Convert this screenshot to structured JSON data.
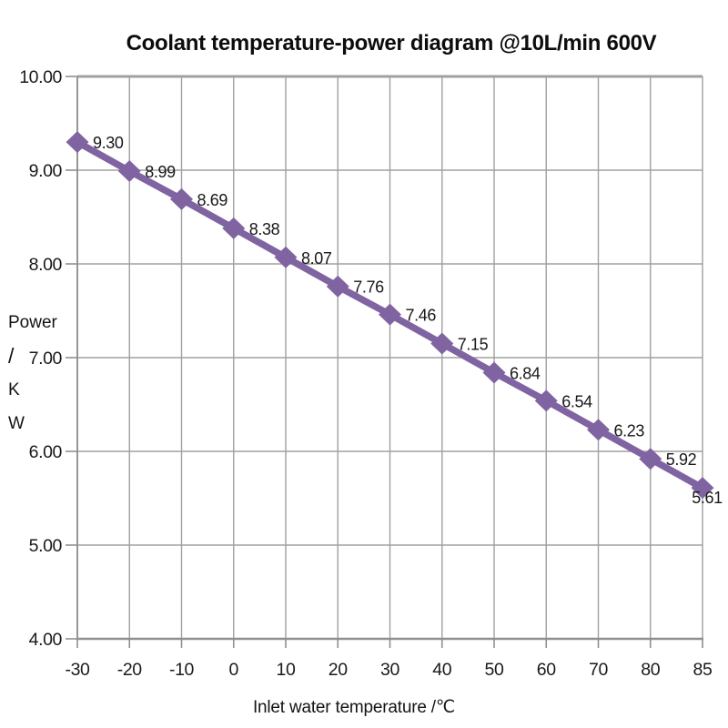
{
  "chart_data": {
    "type": "line",
    "title": "Coolant temperature-power diagram @10L/min 600V",
    "xlabel": "Inlet water temperature /℃",
    "ylabel": "Power / K W",
    "ylabel_lines": [
      "Power",
      "/",
      "K",
      "W"
    ],
    "categories": [
      -30,
      -20,
      -10,
      0,
      10,
      20,
      30,
      40,
      50,
      60,
      70,
      80,
      85
    ],
    "x_tick_labels": [
      "-30",
      "-20",
      "-10",
      "0",
      "10",
      "20",
      "30",
      "40",
      "50",
      "60",
      "70",
      "80",
      "85"
    ],
    "values": [
      9.3,
      8.99,
      8.69,
      8.38,
      8.07,
      7.76,
      7.46,
      7.15,
      6.84,
      6.54,
      6.23,
      5.92,
      5.61
    ],
    "data_labels": [
      "9.30",
      "8.99",
      "8.69",
      "8.38",
      "8.07",
      "7.76",
      "7.46",
      "7.15",
      "6.84",
      "6.54",
      "6.23",
      "5.92",
      "5.61"
    ],
    "ylim": [
      4.0,
      10.0
    ],
    "y_tick_step": 1.0,
    "y_tick_labels": [
      "10.00",
      "9.00",
      "8.00",
      "7.00",
      "6.00",
      "5.00",
      "4.00"
    ],
    "grid": true,
    "legend": "none",
    "marker": "diamond",
    "colors": {
      "series": "#8064A2",
      "grid": "#A0A0A0",
      "axis": "#8F8F8F",
      "text": "#1A1A1A",
      "title": "#0D0D0D"
    }
  }
}
